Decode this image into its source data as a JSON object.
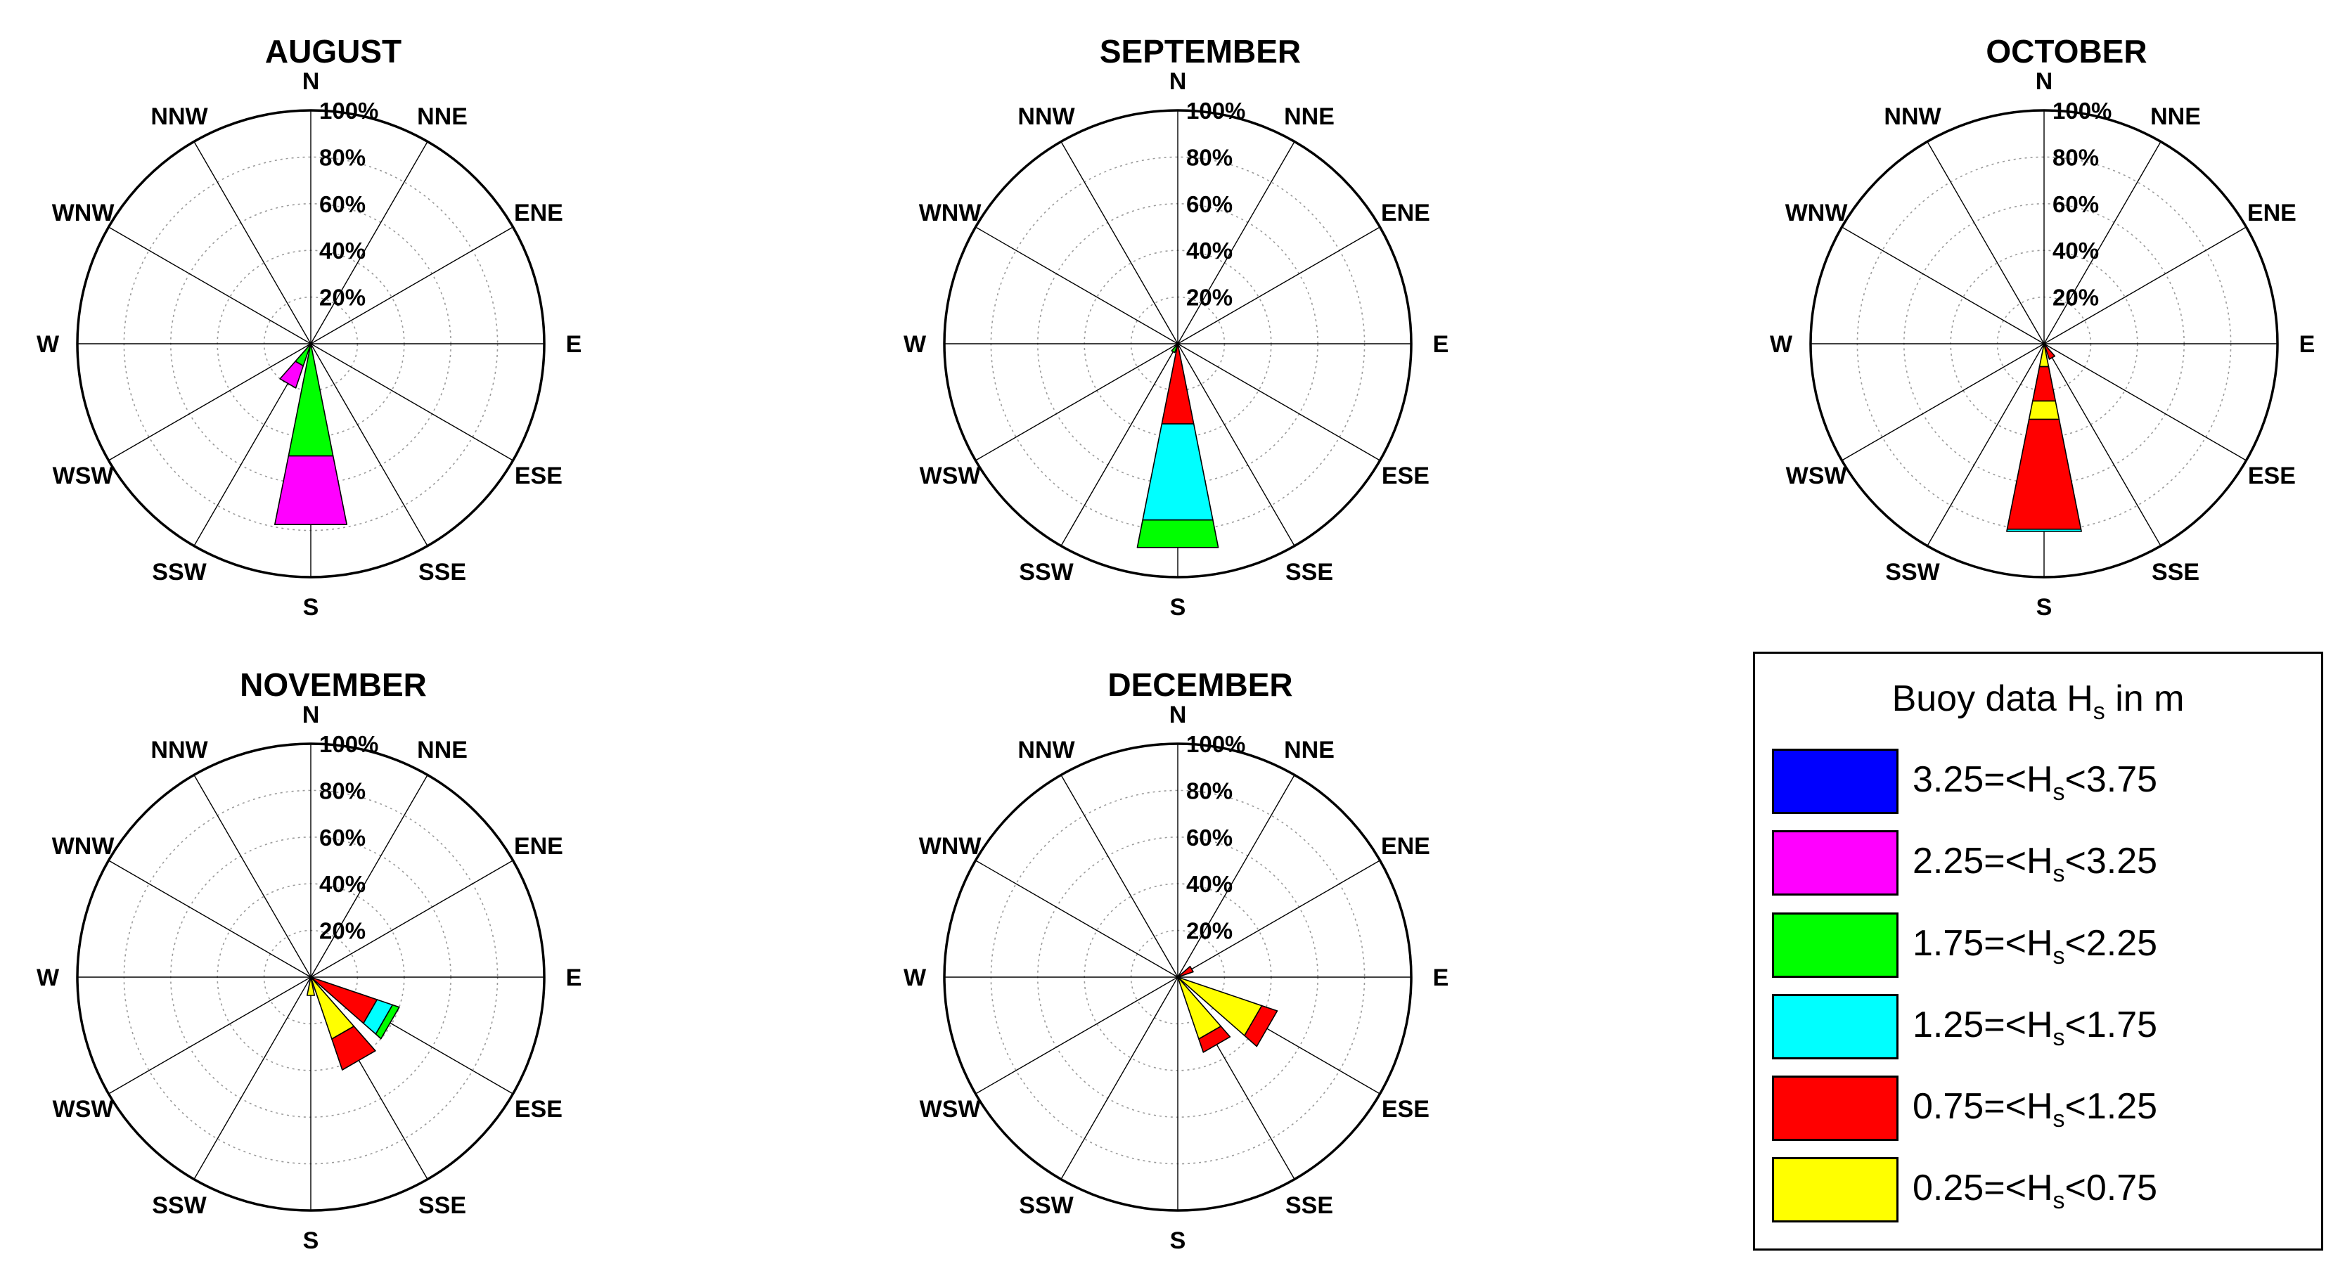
{
  "chart_data": [
    {
      "type": "wind-rose",
      "title": "AUGUST",
      "directions": [
        "N",
        "NNE",
        "ENE",
        "E",
        "ESE",
        "SSE",
        "S",
        "SSW",
        "WSW",
        "W",
        "WNW",
        "NNW"
      ],
      "radial_labels": [
        "20%",
        "40%",
        "60%",
        "80%",
        "100%"
      ],
      "rlim": [
        0,
        100
      ],
      "bins": [
        {
          "direction": "S",
          "segments": [
            {
              "class": "1.75=<Hs<2.25",
              "value": 49
            },
            {
              "class": "2.25=<Hs<3.25",
              "value": 30
            }
          ]
        },
        {
          "direction": "SSW",
          "segments": [
            {
              "class": "1.75=<Hs<2.25",
              "value": 10
            },
            {
              "class": "2.25=<Hs<3.25",
              "value": 10
            }
          ]
        }
      ]
    },
    {
      "type": "wind-rose",
      "title": "SEPTEMBER",
      "directions": [
        "N",
        "NNE",
        "ENE",
        "E",
        "ESE",
        "SSE",
        "S",
        "SSW",
        "WSW",
        "W",
        "WNW",
        "NNW"
      ],
      "radial_labels": [
        "20%",
        "40%",
        "60%",
        "80%",
        "100%"
      ],
      "rlim": [
        0,
        100
      ],
      "bins": [
        {
          "direction": "S",
          "segments": [
            {
              "class": "0.75=<Hs<1.25",
              "value": 35
            },
            {
              "class": "1.25=<Hs<1.75",
              "value": 42
            },
            {
              "class": "1.75=<Hs<2.25",
              "value": 12
            }
          ]
        },
        {
          "direction": "SSW",
          "segments": [
            {
              "class": "1.75=<Hs<2.25",
              "value": 4
            }
          ]
        }
      ]
    },
    {
      "type": "wind-rose",
      "title": "OCTOBER",
      "directions": [
        "N",
        "NNE",
        "ENE",
        "E",
        "ESE",
        "SSE",
        "S",
        "SSW",
        "WSW",
        "W",
        "WNW",
        "NNW"
      ],
      "radial_labels": [
        "20%",
        "40%",
        "60%",
        "80%",
        "100%"
      ],
      "rlim": [
        0,
        100
      ],
      "bins": [
        {
          "direction": "S",
          "segments": [
            {
              "class": "0.25=<Hs<0.75",
              "value": 10
            },
            {
              "class": "0.75=<Hs<1.25",
              "value": 15
            },
            {
              "class": "0.25=<Hs<0.75",
              "value": 8
            },
            {
              "class": "0.75=<Hs<1.25",
              "value": 48
            },
            {
              "class": "1.25=<Hs<1.75",
              "value": 1
            }
          ]
        },
        {
          "direction": "SSE",
          "segments": [
            {
              "class": "0.75=<Hs<1.25",
              "value": 7
            }
          ]
        }
      ]
    },
    {
      "type": "wind-rose",
      "title": "NOVEMBER",
      "directions": [
        "N",
        "NNE",
        "ENE",
        "E",
        "ESE",
        "SSE",
        "S",
        "SSW",
        "WSW",
        "W",
        "WNW",
        "NNW"
      ],
      "radial_labels": [
        "20%",
        "40%",
        "60%",
        "80%",
        "100%"
      ],
      "rlim": [
        0,
        100
      ],
      "bins": [
        {
          "direction": "SSE",
          "segments": [
            {
              "class": "0.25=<Hs<0.75",
              "value": 28
            },
            {
              "class": "0.75=<Hs<1.25",
              "value": 14
            }
          ]
        },
        {
          "direction": "ESE",
          "segments": [
            {
              "class": "0.75=<Hs<1.25",
              "value": 30
            },
            {
              "class": "1.25=<Hs<1.75",
              "value": 7
            },
            {
              "class": "1.75=<Hs<2.25",
              "value": 3
            }
          ]
        },
        {
          "direction": "S",
          "segments": [
            {
              "class": "0.25=<Hs<0.75",
              "value": 8
            }
          ]
        }
      ]
    },
    {
      "type": "wind-rose",
      "title": "DECEMBER",
      "directions": [
        "N",
        "NNE",
        "ENE",
        "E",
        "ESE",
        "SSE",
        "S",
        "SSW",
        "WSW",
        "W",
        "WNW",
        "NNW"
      ],
      "radial_labels": [
        "20%",
        "40%",
        "60%",
        "80%",
        "100%"
      ],
      "rlim": [
        0,
        100
      ],
      "bins": [
        {
          "direction": "ESE",
          "segments": [
            {
              "class": "0.25=<Hs<0.75",
              "value": 38
            },
            {
              "class": "0.75=<Hs<1.25",
              "value": 7
            }
          ]
        },
        {
          "direction": "SSE",
          "segments": [
            {
              "class": "0.25=<Hs<0.75",
              "value": 28
            },
            {
              "class": "0.75=<Hs<1.25",
              "value": 6
            }
          ]
        },
        {
          "direction": "ENE",
          "segments": [
            {
              "class": "0.75=<Hs<1.25",
              "value": 7
            }
          ]
        }
      ]
    }
  ],
  "colors": {
    "3.25=<Hs<3.75": "#0000ff",
    "2.25=<Hs<3.25": "#ff00ff",
    "1.75=<Hs<2.25": "#00ff00",
    "1.25=<Hs<1.75": "#00ffff",
    "0.75=<Hs<1.25": "#ff0000",
    "0.25=<Hs<0.75": "#ffff00"
  },
  "legend": {
    "title_prefix": "Buoy data H",
    "title_sub": "s",
    "title_suffix": " in m",
    "items": [
      {
        "lo": "3.25=<H",
        "sub": "s",
        "hi": "<3.75",
        "color": "#0000ff"
      },
      {
        "lo": "2.25=<H",
        "sub": "s",
        "hi": "<3.25",
        "color": "#ff00ff"
      },
      {
        "lo": "1.75=<H",
        "sub": "s",
        "hi": "<2.25",
        "color": "#00ff00"
      },
      {
        "lo": "1.25=<H",
        "sub": "s",
        "hi": "<1.75",
        "color": "#00ffff"
      },
      {
        "lo": "0.75=<H",
        "sub": "s",
        "hi": "<1.25",
        "color": "#ff0000"
      },
      {
        "lo": "0.25=<H",
        "sub": "s",
        "hi": "<0.75",
        "color": "#ffff00"
      }
    ]
  }
}
